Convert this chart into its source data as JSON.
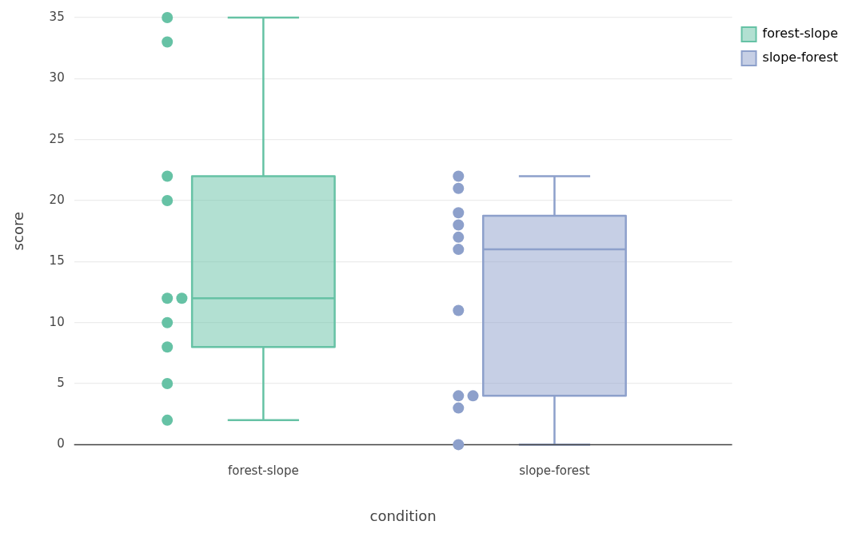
{
  "chart_data": {
    "type": "box",
    "xlabel": "condition",
    "ylabel": "score",
    "categories": [
      "forest-slope",
      "slope-forest"
    ],
    "ylim": [
      0,
      35
    ],
    "yticks": [
      0,
      5,
      10,
      15,
      20,
      25,
      30,
      35
    ],
    "grid": "y",
    "legend": "top right",
    "marker": "circle",
    "series": [
      {
        "name": "forest-slope",
        "color": "#66c2a5",
        "boxes": [
          {
            "low": 2,
            "q1": 8,
            "median": 12,
            "q3": 22,
            "high": 35
          },
          null
        ]
      },
      {
        "name": "slope-forest",
        "color": "#8da0cb",
        "boxes": [
          null,
          {
            "low": 0,
            "q1": 4,
            "median": 16,
            "q3": 18.75,
            "high": 22
          }
        ]
      },
      {
        "type": "scatter",
        "color": "#66c2a5",
        "x": [
          "forest-slope",
          "forest-slope",
          "forest-slope",
          "forest-slope",
          "forest-slope",
          "forest-slope",
          "forest-slope",
          "forest-slope",
          "forest-slope",
          "forest-slope"
        ],
        "values": [
          35,
          33,
          22,
          20,
          12,
          12,
          10,
          8,
          5,
          2
        ]
      },
      {
        "type": "scatter",
        "color": "#8da0cb",
        "x": [
          "slope-forest",
          "slope-forest",
          "slope-forest",
          "slope-forest",
          "slope-forest",
          "slope-forest",
          "slope-forest",
          "slope-forest",
          "slope-forest",
          "slope-forest",
          "slope-forest"
        ],
        "values": [
          22,
          21,
          19,
          18,
          17,
          16,
          11,
          4,
          4,
          3,
          0
        ]
      }
    ]
  }
}
